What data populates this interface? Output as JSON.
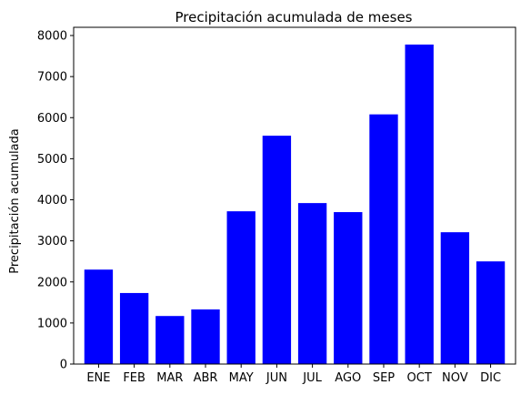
{
  "chart_data": {
    "type": "bar",
    "title": "Precipitación acumulada de meses",
    "xlabel": "",
    "ylabel": "Precipitación acumulada",
    "categories": [
      "ENE",
      "FEB",
      "MAR",
      "ABR",
      "MAY",
      "JUN",
      "JUL",
      "AGO",
      "SEP",
      "OCT",
      "NOV",
      "DIC"
    ],
    "values": [
      2300,
      1730,
      1170,
      1330,
      3720,
      5560,
      3920,
      3700,
      6080,
      7780,
      3210,
      2500
    ],
    "ylim": [
      0,
      8200
    ],
    "yticks": [
      0,
      1000,
      2000,
      3000,
      4000,
      5000,
      6000,
      7000,
      8000
    ],
    "bar_color": "#0000ff",
    "grid": false,
    "legend": "none"
  }
}
